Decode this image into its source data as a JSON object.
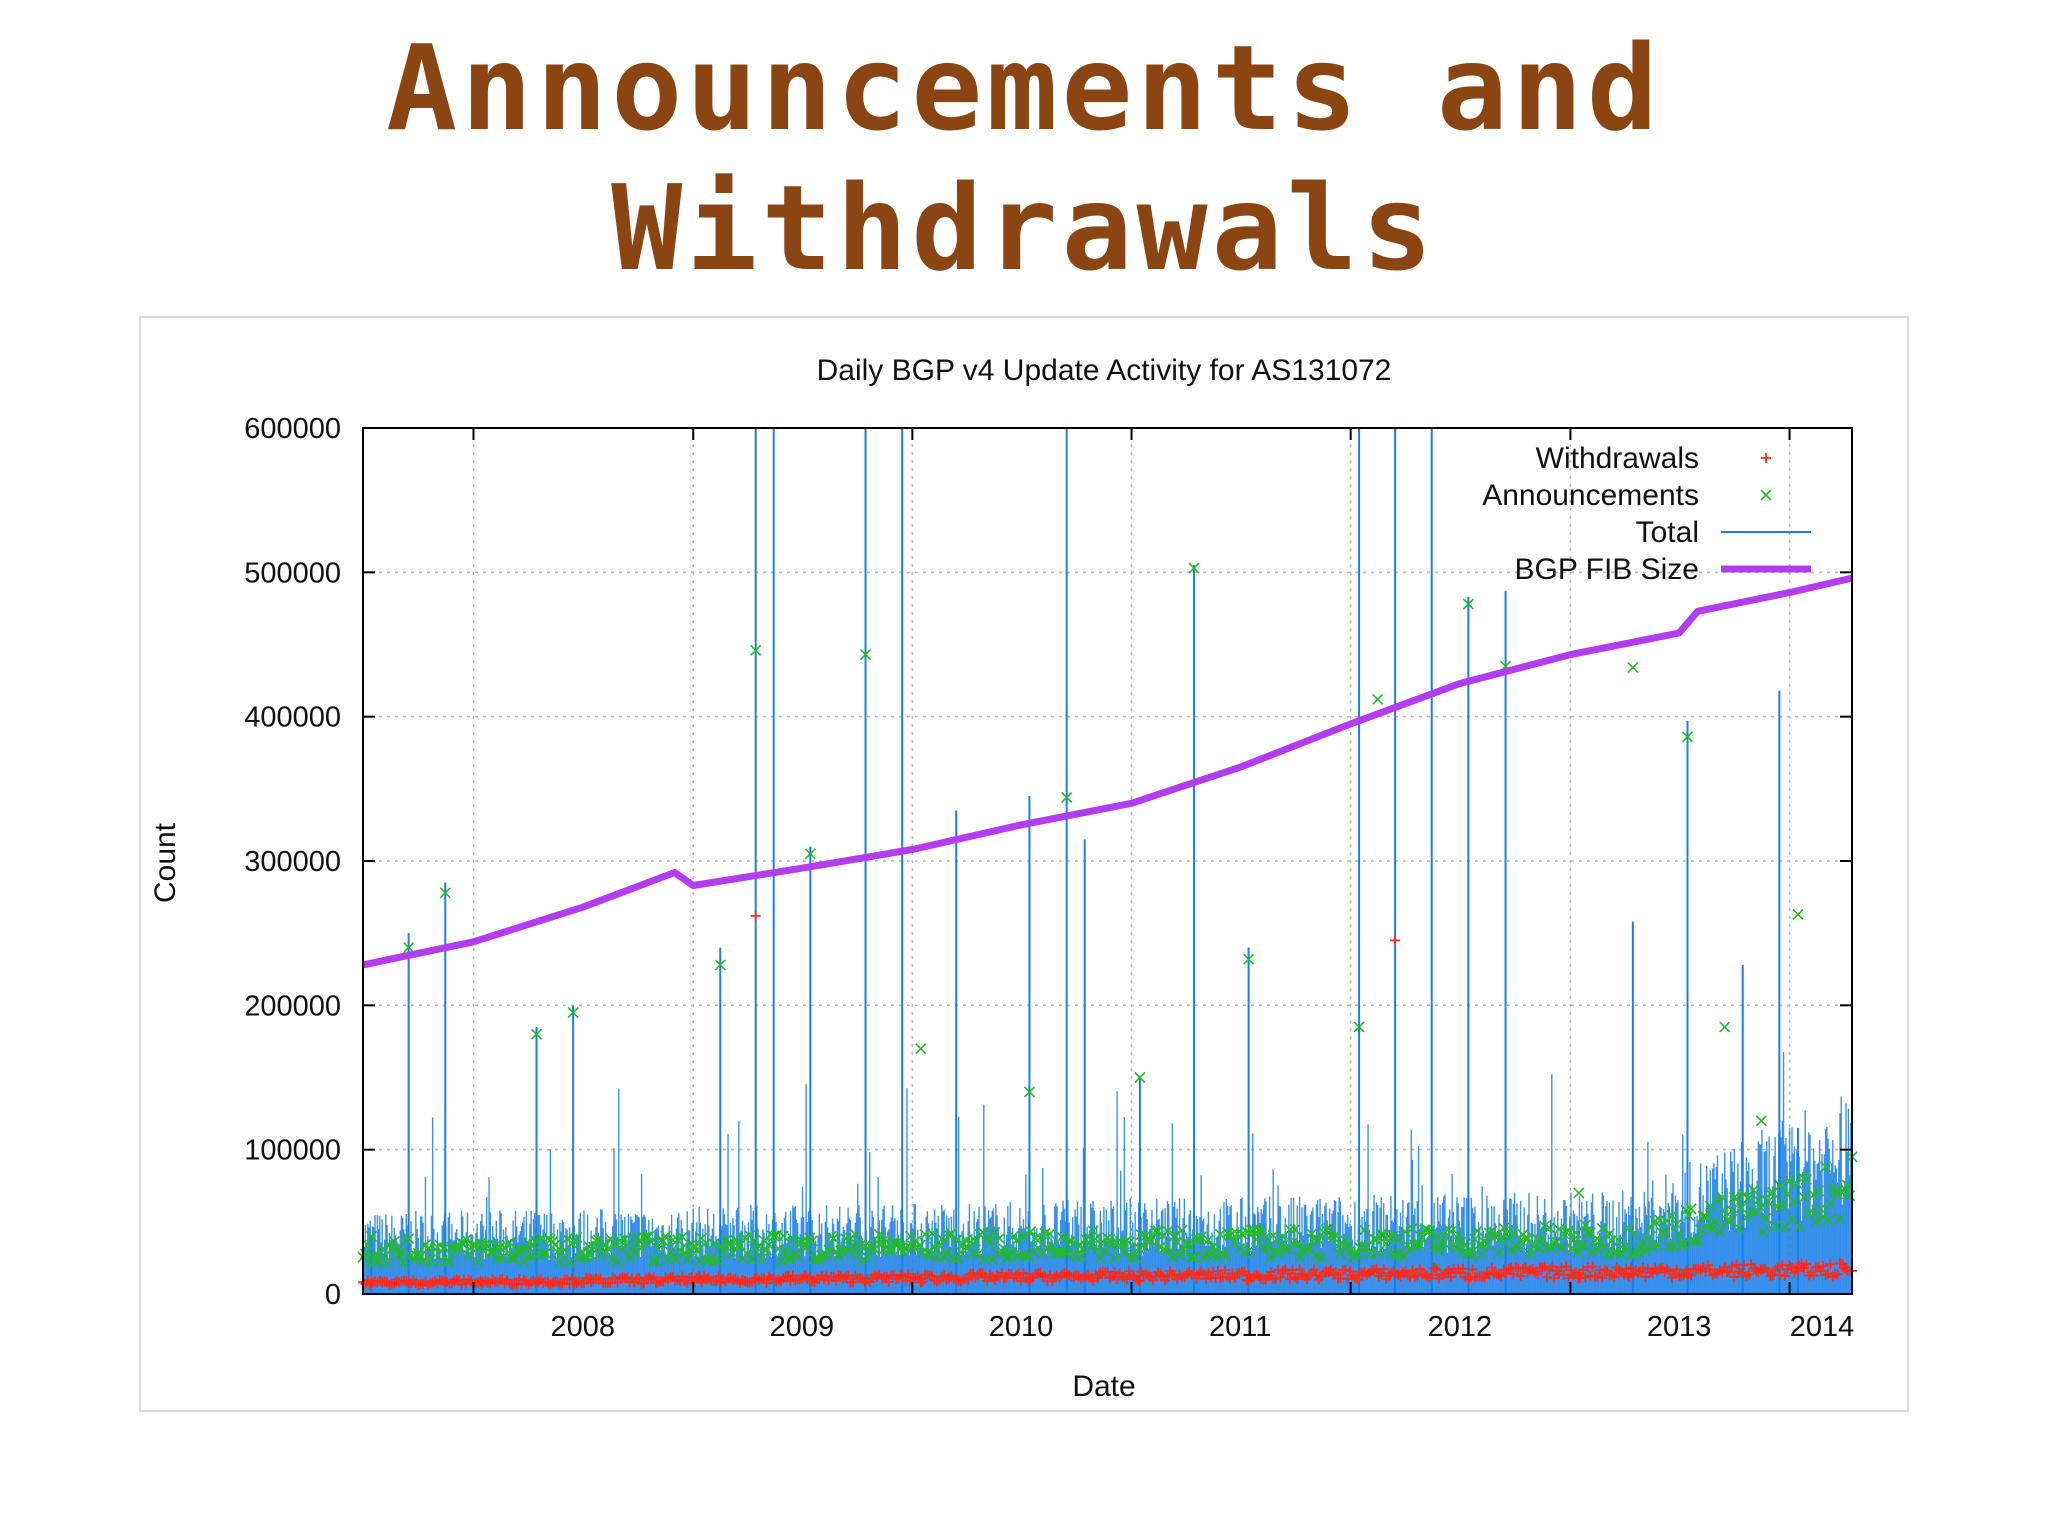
{
  "slide": {
    "title_line1": "Announcements and",
    "title_line2": "Withdrawals"
  },
  "colors": {
    "title": "#8b4513",
    "withdrawals": "#ff2a1a",
    "announcements": "#22bb22",
    "total": "#1a7fe8",
    "fib": "#b43cf0"
  },
  "chart_data": {
    "type": "line",
    "title": "Daily BGP v4 Update Activity for AS131072",
    "xlabel": "Date",
    "ylabel": "Count",
    "xlim": [
      "2007-07-01",
      "2014-04-15"
    ],
    "ylim": [
      0,
      600000
    ],
    "x_ticks": [
      "2008",
      "2009",
      "2010",
      "2011",
      "2012",
      "2013",
      "2014"
    ],
    "y_ticks": [
      0,
      100000,
      200000,
      300000,
      400000,
      500000,
      600000
    ],
    "grid": true,
    "legend_position": "top-right",
    "series": [
      {
        "name": "Withdrawals",
        "style": "points-plus",
        "color": "#ff2a1a",
        "x": [
          "2007-07",
          "2008-01",
          "2008-07",
          "2009-01",
          "2009-04",
          "2009-07",
          "2010-01",
          "2010-07",
          "2011-01",
          "2011-07",
          "2012-01",
          "2012-03",
          "2012-07",
          "2013-01",
          "2013-04",
          "2013-07",
          "2014-01",
          "2014-04"
        ],
        "y": [
          8000,
          7000,
          8000,
          8000,
          262000,
          9000,
          8000,
          9000,
          9000,
          9000,
          10000,
          245000,
          10000,
          11000,
          14000,
          14000,
          16000,
          16000
        ]
      },
      {
        "name": "Announcements",
        "style": "points-x",
        "color": "#22bb22",
        "x": [
          "2007-07",
          "2007-09",
          "2007-11",
          "2008-04",
          "2008-06",
          "2009-02",
          "2009-04",
          "2009-07",
          "2009-10",
          "2010-01",
          "2010-07",
          "2010-09",
          "2011-01",
          "2011-04",
          "2011-07",
          "2012-01",
          "2012-02",
          "2012-07",
          "2012-09",
          "2013-01",
          "2013-04",
          "2013-07",
          "2013-09",
          "2013-11",
          "2014-01",
          "2014-04"
        ],
        "y": [
          40000,
          240000,
          278000,
          180000,
          195000,
          228000,
          446000,
          305000,
          443000,
          170000,
          140000,
          344000,
          150000,
          503000,
          232000,
          185000,
          412000,
          478000,
          435000,
          70000,
          434000,
          386000,
          185000,
          120000,
          263000,
          95000
        ]
      },
      {
        "name": "Total",
        "style": "impulses",
        "color": "#1a7fe8",
        "x": [
          "2007-07",
          "2007-09",
          "2007-11",
          "2008-04",
          "2008-06",
          "2009-02",
          "2009-04",
          "2009-05",
          "2009-07",
          "2009-10",
          "2009-12",
          "2010-03",
          "2010-07",
          "2010-09",
          "2010-10",
          "2011-01",
          "2011-04",
          "2011-07",
          "2012-01",
          "2012-03",
          "2012-05",
          "2012-07",
          "2012-09",
          "2013-04",
          "2013-07",
          "2013-10",
          "2013-12",
          "2014-01",
          "2014-04"
        ],
        "y": [
          40000,
          250000,
          285000,
          185000,
          200000,
          240000,
          600000,
          600000,
          310000,
          600000,
          600000,
          335000,
          345000,
          600000,
          315000,
          150000,
          505000,
          240000,
          600000,
          600000,
          600000,
          483000,
          487000,
          258000,
          397000,
          228000,
          418000,
          115000,
          155000
        ]
      },
      {
        "name": "BGP FIB Size",
        "style": "line",
        "color": "#b43cf0",
        "x": [
          "2007-07-01",
          "2008-01-01",
          "2008-07-01",
          "2008-12-01",
          "2009-01-01",
          "2009-07-01",
          "2010-01-01",
          "2010-07-01",
          "2011-01-01",
          "2011-07-01",
          "2012-01-01",
          "2012-07-01",
          "2013-01-01",
          "2013-07-01",
          "2013-08-01",
          "2014-01-01",
          "2014-04-15"
        ],
        "y": [
          228000,
          244000,
          268000,
          292000,
          283000,
          295000,
          308000,
          325000,
          340000,
          365000,
          395000,
          423000,
          443000,
          458000,
          473000,
          486000,
          496000
        ]
      }
    ]
  }
}
